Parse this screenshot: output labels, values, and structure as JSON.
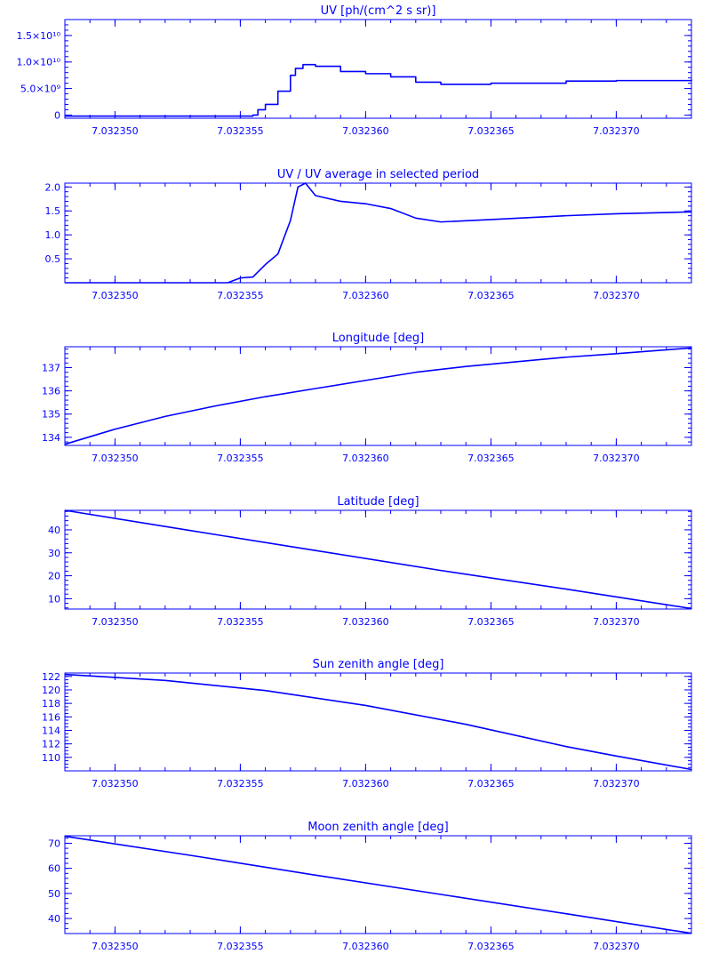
{
  "style": {
    "ink": "#0000ff",
    "background": "#ffffff"
  },
  "chart_data": [
    {
      "type": "line",
      "title": "UV [ph/(cm^2 s sr)]",
      "xlim": [
        7.032348,
        7.032373
      ],
      "ylim": [
        -0.06,
        1.8
      ],
      "y_ticks": [
        {
          "value": 0,
          "label": "0"
        },
        {
          "value": 0.5,
          "label": "5.0×10⁹"
        },
        {
          "value": 1.0,
          "label": "1.0×10¹⁰"
        },
        {
          "value": 1.5,
          "label": "1.5×10¹⁰"
        }
      ],
      "y_minor_step": 0.1,
      "x_ticks": [
        {
          "value": 7.03235,
          "label": "7.032350"
        },
        {
          "value": 7.032355,
          "label": "7.032355"
        },
        {
          "value": 7.03236,
          "label": "7.032360"
        },
        {
          "value": 7.032365,
          "label": "7.032365"
        },
        {
          "value": 7.03237,
          "label": "7.032370"
        }
      ],
      "x_minor_step": 1e-06,
      "step": true,
      "series": [
        {
          "x": [
            7.032348,
            7.032355,
            7.0323555,
            7.0323557,
            7.032356,
            7.0323565,
            7.032357,
            7.0323572,
            7.0323575,
            7.032358,
            7.032359,
            7.03236,
            7.032361,
            7.032362,
            7.032363,
            7.032365,
            7.032368,
            7.03237,
            7.032373
          ],
          "values": [
            -0.02,
            -0.02,
            0.0,
            0.1,
            0.2,
            0.45,
            0.75,
            0.88,
            0.95,
            0.92,
            0.82,
            0.78,
            0.72,
            0.62,
            0.58,
            0.6,
            0.64,
            0.65,
            0.67
          ]
        }
      ]
    },
    {
      "type": "line",
      "title": "UV / UV average in selected period",
      "xlim": [
        7.032348,
        7.032373
      ],
      "ylim": [
        0.0,
        2.08
      ],
      "y_ticks": [
        {
          "value": 0.5,
          "label": "0.5"
        },
        {
          "value": 1.0,
          "label": "1.0"
        },
        {
          "value": 1.5,
          "label": "1.5"
        },
        {
          "value": 2.0,
          "label": "2.0"
        }
      ],
      "y_minor_step": 0.1,
      "x_ticks": [
        {
          "value": 7.03235,
          "label": "7.032350"
        },
        {
          "value": 7.032355,
          "label": "7.032355"
        },
        {
          "value": 7.03236,
          "label": "7.032360"
        },
        {
          "value": 7.032365,
          "label": "7.032365"
        },
        {
          "value": 7.03237,
          "label": "7.032370"
        }
      ],
      "x_minor_step": 1e-06,
      "step": false,
      "series": [
        {
          "x": [
            7.032348,
            7.0323545,
            7.032355,
            7.0323555,
            7.032356,
            7.0323565,
            7.032357,
            7.0323573,
            7.0323576,
            7.032358,
            7.032359,
            7.03236,
            7.032361,
            7.032362,
            7.032363,
            7.032365,
            7.032368,
            7.03237,
            7.032373
          ],
          "values": [
            0.0,
            0.0,
            0.1,
            0.12,
            0.38,
            0.6,
            1.3,
            2.0,
            2.08,
            1.82,
            1.7,
            1.65,
            1.55,
            1.35,
            1.27,
            1.32,
            1.4,
            1.44,
            1.48
          ]
        }
      ]
    },
    {
      "type": "line",
      "title": "Longitude [deg]",
      "xlim": [
        7.032348,
        7.032373
      ],
      "ylim": [
        133.65,
        137.9
      ],
      "y_ticks": [
        {
          "value": 134,
          "label": "134"
        },
        {
          "value": 135,
          "label": "135"
        },
        {
          "value": 136,
          "label": "136"
        },
        {
          "value": 137,
          "label": "137"
        }
      ],
      "y_minor_step": 0.2,
      "x_ticks": [
        {
          "value": 7.03235,
          "label": "7.032350"
        },
        {
          "value": 7.032355,
          "label": "7.032355"
        },
        {
          "value": 7.03236,
          "label": "7.032360"
        },
        {
          "value": 7.032365,
          "label": "7.032365"
        },
        {
          "value": 7.03237,
          "label": "7.032370"
        }
      ],
      "x_minor_step": 1e-06,
      "step": false,
      "series": [
        {
          "x": [
            7.032348,
            7.03235,
            7.032352,
            7.032354,
            7.032356,
            7.032358,
            7.03236,
            7.032362,
            7.032364,
            7.032366,
            7.032368,
            7.03237,
            7.032373
          ],
          "values": [
            133.7,
            134.35,
            134.9,
            135.35,
            135.75,
            136.1,
            136.45,
            136.8,
            137.05,
            137.25,
            137.45,
            137.6,
            137.85
          ]
        }
      ]
    },
    {
      "type": "line",
      "title": "Latitude [deg]",
      "xlim": [
        7.032348,
        7.032373
      ],
      "ylim": [
        5.5,
        48.5
      ],
      "y_ticks": [
        {
          "value": 10,
          "label": "10"
        },
        {
          "value": 20,
          "label": "20"
        },
        {
          "value": 30,
          "label": "30"
        },
        {
          "value": 40,
          "label": "40"
        }
      ],
      "y_minor_step": 2,
      "x_ticks": [
        {
          "value": 7.03235,
          "label": "7.032350"
        },
        {
          "value": 7.032355,
          "label": "7.032355"
        },
        {
          "value": 7.03236,
          "label": "7.032360"
        },
        {
          "value": 7.032365,
          "label": "7.032365"
        },
        {
          "value": 7.03237,
          "label": "7.032370"
        }
      ],
      "x_minor_step": 1e-06,
      "step": false,
      "series": [
        {
          "x": [
            7.032348,
            7.032353,
            7.032358,
            7.032363,
            7.032368,
            7.032373
          ],
          "values": [
            48.5,
            39.7,
            31.0,
            22.3,
            14.2,
            5.7
          ]
        }
      ]
    },
    {
      "type": "line",
      "title": "Sun zenith angle [deg]",
      "xlim": [
        7.032348,
        7.032373
      ],
      "ylim": [
        108.0,
        122.5
      ],
      "y_ticks": [
        {
          "value": 110,
          "label": "110"
        },
        {
          "value": 112,
          "label": "112"
        },
        {
          "value": 114,
          "label": "114"
        },
        {
          "value": 116,
          "label": "116"
        },
        {
          "value": 118,
          "label": "118"
        },
        {
          "value": 120,
          "label": "120"
        },
        {
          "value": 122,
          "label": "122"
        }
      ],
      "y_minor_step": 0.5,
      "x_ticks": [
        {
          "value": 7.03235,
          "label": "7.032350"
        },
        {
          "value": 7.032355,
          "label": "7.032355"
        },
        {
          "value": 7.03236,
          "label": "7.032360"
        },
        {
          "value": 7.032365,
          "label": "7.032365"
        },
        {
          "value": 7.03237,
          "label": "7.032370"
        }
      ],
      "x_minor_step": 1e-06,
      "step": false,
      "series": [
        {
          "x": [
            7.032348,
            7.032352,
            7.032356,
            7.03236,
            7.032364,
            7.032368,
            7.03237,
            7.032373
          ],
          "values": [
            122.3,
            121.4,
            119.9,
            117.7,
            114.9,
            111.6,
            110.2,
            108.2
          ]
        }
      ]
    },
    {
      "type": "line",
      "title": "Moon zenith angle [deg]",
      "xlim": [
        7.032348,
        7.032373
      ],
      "ylim": [
        34.0,
        73.0
      ],
      "y_ticks": [
        {
          "value": 40,
          "label": "40"
        },
        {
          "value": 50,
          "label": "50"
        },
        {
          "value": 60,
          "label": "60"
        },
        {
          "value": 70,
          "label": "70"
        }
      ],
      "y_minor_step": 2,
      "x_ticks": [
        {
          "value": 7.03235,
          "label": "7.032350"
        },
        {
          "value": 7.032355,
          "label": "7.032355"
        },
        {
          "value": 7.03236,
          "label": "7.032360"
        },
        {
          "value": 7.032365,
          "label": "7.032365"
        },
        {
          "value": 7.03237,
          "label": "7.032370"
        }
      ],
      "x_minor_step": 1e-06,
      "step": false,
      "series": [
        {
          "x": [
            7.032348,
            7.032353,
            7.032358,
            7.032363,
            7.032368,
            7.032373
          ],
          "values": [
            72.8,
            65.2,
            57.3,
            49.6,
            41.9,
            34.1
          ]
        }
      ]
    }
  ]
}
